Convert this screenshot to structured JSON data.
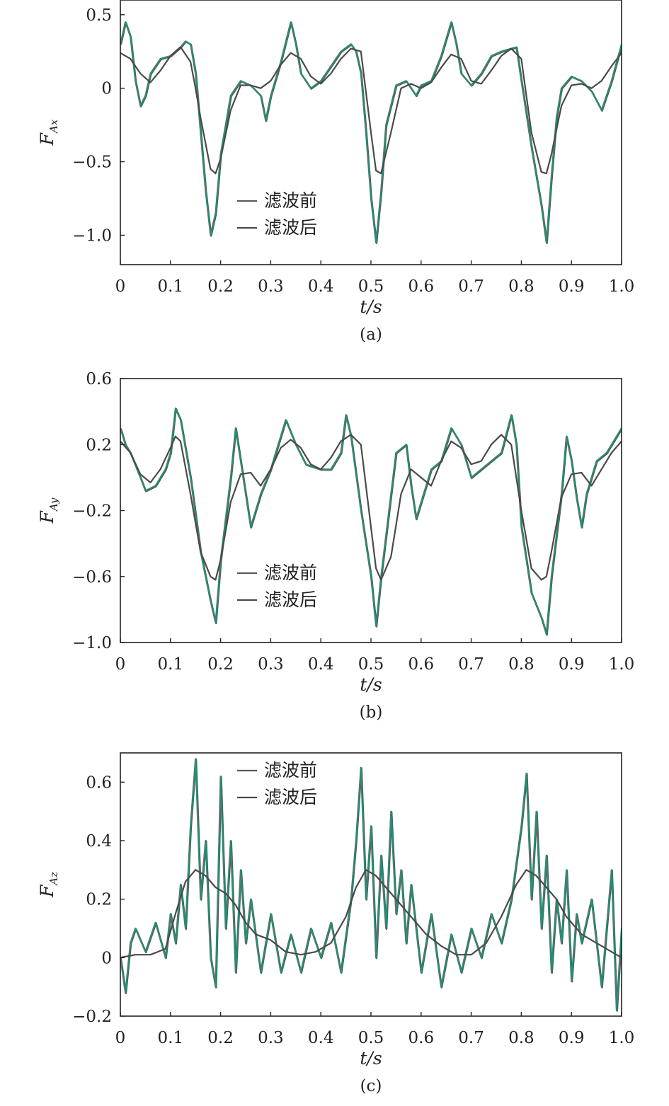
{
  "colors": {
    "raw": "#2e8a74",
    "raw_shadow": "#5a5a5a",
    "filtered": "#4a4a4a",
    "axis": "#222222"
  },
  "chart_data": [
    {
      "type": "line",
      "panel": "(a)",
      "xlabel": "t/s",
      "ylabel": "F_Ax",
      "ylabel_main": "F",
      "ylabel_sub": "Ax",
      "xlim": [
        0,
        1.0
      ],
      "ylim": [
        -1.2,
        0.6
      ],
      "x_ticks": [
        0,
        0.1,
        0.2,
        0.3,
        0.4,
        0.5,
        0.6,
        0.7,
        0.8,
        0.9,
        1.0
      ],
      "x_tick_labels": [
        "0",
        "0.1",
        "0.2",
        "0.3",
        "0.4",
        "0.5",
        "0.6",
        "0.7",
        "0.8",
        "0.9",
        "1.0"
      ],
      "y_ticks": [
        0.5,
        0,
        -0.5,
        -1.0
      ],
      "y_tick_labels": [
        "0.5",
        "0",
        "−0.5",
        "−1.0"
      ],
      "legend": {
        "placement": "center-bottom",
        "entries": [
          "滤波前",
          "滤波后"
        ]
      },
      "series": [
        {
          "name": "滤波前",
          "x": [
            0,
            0.01,
            0.02,
            0.03,
            0.04,
            0.05,
            0.06,
            0.08,
            0.1,
            0.12,
            0.13,
            0.14,
            0.15,
            0.16,
            0.17,
            0.18,
            0.19,
            0.2,
            0.22,
            0.24,
            0.26,
            0.28,
            0.29,
            0.3,
            0.32,
            0.34,
            0.35,
            0.36,
            0.38,
            0.4,
            0.42,
            0.44,
            0.46,
            0.47,
            0.48,
            0.49,
            0.5,
            0.51,
            0.52,
            0.53,
            0.55,
            0.57,
            0.59,
            0.6,
            0.62,
            0.64,
            0.66,
            0.67,
            0.68,
            0.7,
            0.72,
            0.74,
            0.76,
            0.79,
            0.8,
            0.82,
            0.84,
            0.85,
            0.86,
            0.87,
            0.88,
            0.9,
            0.92,
            0.94,
            0.96,
            0.98,
            1.0
          ],
          "y": [
            0.3,
            0.45,
            0.35,
            0.05,
            -0.12,
            -0.05,
            0.1,
            0.2,
            0.22,
            0.28,
            0.32,
            0.3,
            0.1,
            -0.3,
            -0.7,
            -1.0,
            -0.85,
            -0.45,
            -0.05,
            0.05,
            0.02,
            -0.05,
            -0.22,
            -0.05,
            0.18,
            0.45,
            0.3,
            0.1,
            0.0,
            0.05,
            0.15,
            0.25,
            0.3,
            0.25,
            0.1,
            -0.3,
            -0.75,
            -1.05,
            -0.7,
            -0.25,
            0.02,
            0.05,
            -0.05,
            0.02,
            0.05,
            0.22,
            0.45,
            0.3,
            0.1,
            0.02,
            0.1,
            0.22,
            0.25,
            0.28,
            0.05,
            -0.4,
            -0.8,
            -1.05,
            -0.6,
            -0.2,
            0.0,
            0.08,
            0.05,
            -0.02,
            -0.15,
            0.05,
            0.3
          ]
        },
        {
          "name": "滤波后",
          "x": [
            0,
            0.02,
            0.04,
            0.06,
            0.08,
            0.1,
            0.12,
            0.14,
            0.15,
            0.16,
            0.18,
            0.19,
            0.2,
            0.22,
            0.24,
            0.26,
            0.28,
            0.3,
            0.32,
            0.34,
            0.36,
            0.38,
            0.4,
            0.42,
            0.44,
            0.46,
            0.48,
            0.5,
            0.51,
            0.52,
            0.54,
            0.56,
            0.58,
            0.6,
            0.62,
            0.64,
            0.66,
            0.68,
            0.7,
            0.72,
            0.74,
            0.76,
            0.78,
            0.8,
            0.82,
            0.84,
            0.85,
            0.86,
            0.88,
            0.9,
            0.92,
            0.94,
            0.96,
            0.98,
            1.0
          ],
          "y": [
            0.24,
            0.2,
            0.1,
            0.04,
            0.12,
            0.22,
            0.28,
            0.18,
            0.0,
            -0.2,
            -0.55,
            -0.58,
            -0.48,
            -0.15,
            0.02,
            0.02,
            0.0,
            0.05,
            0.16,
            0.24,
            0.2,
            0.08,
            0.03,
            0.1,
            0.2,
            0.27,
            0.25,
            -0.3,
            -0.56,
            -0.58,
            -0.3,
            0.0,
            0.03,
            0.0,
            0.04,
            0.14,
            0.23,
            0.2,
            0.05,
            0.03,
            0.12,
            0.22,
            0.27,
            0.2,
            -0.3,
            -0.57,
            -0.58,
            -0.45,
            -0.12,
            0.02,
            0.03,
            0.0,
            0.05,
            0.15,
            0.24
          ]
        }
      ]
    },
    {
      "type": "line",
      "panel": "(b)",
      "xlabel": "t/s",
      "ylabel": "F_Ay",
      "ylabel_main": "F",
      "ylabel_sub": "Ay",
      "xlim": [
        0,
        1.0
      ],
      "ylim": [
        -1.0,
        0.6
      ],
      "x_ticks": [
        0,
        0.1,
        0.2,
        0.3,
        0.4,
        0.5,
        0.6,
        0.7,
        0.8,
        0.9,
        1.0
      ],
      "x_tick_labels": [
        "0",
        "0.1",
        "0.2",
        "0.3",
        "0.4",
        "0.5",
        "0.6",
        "0.7",
        "0.8",
        "0.9",
        "1.0"
      ],
      "y_ticks": [
        0.6,
        0.2,
        -0.2,
        -0.6,
        -1.0
      ],
      "y_tick_labels": [
        "0.6",
        "0.2",
        "−0.2",
        "−0.6",
        "−1.0"
      ],
      "legend": {
        "placement": "center-bottom",
        "entries": [
          "滤波前",
          "滤波后"
        ]
      },
      "series": [
        {
          "name": "滤波前",
          "x": [
            0,
            0.01,
            0.02,
            0.04,
            0.05,
            0.07,
            0.09,
            0.1,
            0.11,
            0.12,
            0.14,
            0.16,
            0.18,
            0.19,
            0.2,
            0.22,
            0.23,
            0.24,
            0.25,
            0.26,
            0.28,
            0.3,
            0.33,
            0.35,
            0.37,
            0.4,
            0.42,
            0.44,
            0.45,
            0.46,
            0.48,
            0.5,
            0.51,
            0.52,
            0.54,
            0.55,
            0.57,
            0.58,
            0.59,
            0.6,
            0.62,
            0.64,
            0.66,
            0.68,
            0.7,
            0.72,
            0.74,
            0.76,
            0.78,
            0.79,
            0.8,
            0.82,
            0.84,
            0.85,
            0.86,
            0.88,
            0.89,
            0.9,
            0.91,
            0.92,
            0.93,
            0.95,
            0.97,
            1.0
          ],
          "y": [
            0.3,
            0.2,
            0.15,
            0.0,
            -0.08,
            -0.05,
            0.05,
            0.15,
            0.42,
            0.35,
            0.0,
            -0.45,
            -0.75,
            -0.88,
            -0.5,
            0.0,
            0.3,
            0.1,
            -0.1,
            -0.3,
            -0.1,
            0.05,
            0.35,
            0.2,
            0.08,
            0.05,
            0.05,
            0.15,
            0.38,
            0.25,
            -0.2,
            -0.6,
            -0.9,
            -0.6,
            -0.1,
            0.15,
            0.2,
            -0.05,
            -0.25,
            -0.15,
            0.05,
            0.1,
            0.3,
            0.2,
            0.0,
            0.05,
            0.1,
            0.15,
            0.38,
            0.2,
            -0.3,
            -0.7,
            -0.85,
            -0.95,
            -0.6,
            -0.1,
            0.25,
            0.1,
            -0.12,
            -0.3,
            -0.1,
            0.1,
            0.15,
            0.3
          ]
        },
        {
          "name": "滤波后",
          "x": [
            0,
            0.02,
            0.04,
            0.06,
            0.08,
            0.1,
            0.11,
            0.12,
            0.14,
            0.16,
            0.18,
            0.19,
            0.2,
            0.22,
            0.24,
            0.26,
            0.28,
            0.3,
            0.32,
            0.34,
            0.36,
            0.38,
            0.4,
            0.42,
            0.44,
            0.46,
            0.48,
            0.5,
            0.51,
            0.52,
            0.54,
            0.56,
            0.58,
            0.6,
            0.62,
            0.64,
            0.66,
            0.68,
            0.7,
            0.72,
            0.74,
            0.76,
            0.78,
            0.8,
            0.82,
            0.84,
            0.85,
            0.86,
            0.88,
            0.9,
            0.92,
            0.94,
            0.96,
            0.98,
            1.0
          ],
          "y": [
            0.22,
            0.15,
            0.02,
            -0.03,
            0.05,
            0.18,
            0.25,
            0.22,
            -0.1,
            -0.45,
            -0.6,
            -0.62,
            -0.5,
            -0.15,
            0.02,
            0.03,
            -0.05,
            0.05,
            0.18,
            0.23,
            0.18,
            0.08,
            0.05,
            0.12,
            0.22,
            0.26,
            0.2,
            -0.3,
            -0.55,
            -0.62,
            -0.48,
            -0.1,
            0.05,
            0.0,
            -0.05,
            0.1,
            0.22,
            0.18,
            0.08,
            0.1,
            0.2,
            0.26,
            0.2,
            -0.2,
            -0.55,
            -0.62,
            -0.6,
            -0.45,
            -0.12,
            0.02,
            0.03,
            -0.05,
            0.05,
            0.15,
            0.22
          ]
        }
      ]
    },
    {
      "type": "line",
      "panel": "(c)",
      "xlabel": "t/s",
      "ylabel": "F_Az",
      "ylabel_main": "F",
      "ylabel_sub": "Az",
      "xlim": [
        0,
        1.0
      ],
      "ylim": [
        -0.2,
        0.7
      ],
      "x_ticks": [
        0,
        0.1,
        0.2,
        0.3,
        0.4,
        0.5,
        0.6,
        0.7,
        0.8,
        0.9,
        1.0
      ],
      "x_tick_labels": [
        "0",
        "0.1",
        "0.2",
        "0.3",
        "0.4",
        "0.5",
        "0.6",
        "0.7",
        "0.8",
        "0.9",
        "1.0"
      ],
      "y_ticks": [
        0.6,
        0.4,
        0.2,
        0,
        -0.2
      ],
      "y_tick_labels": [
        "0.6",
        "0.4",
        "0.2",
        "0",
        "−0.2"
      ],
      "legend": {
        "placement": "top-left",
        "entries": [
          "滤波前",
          "滤波后"
        ]
      },
      "series": [
        {
          "name": "滤波前",
          "x": [
            0,
            0.01,
            0.02,
            0.03,
            0.05,
            0.07,
            0.09,
            0.1,
            0.11,
            0.12,
            0.13,
            0.14,
            0.15,
            0.16,
            0.17,
            0.18,
            0.19,
            0.2,
            0.21,
            0.22,
            0.23,
            0.24,
            0.25,
            0.26,
            0.28,
            0.3,
            0.32,
            0.34,
            0.36,
            0.38,
            0.4,
            0.42,
            0.44,
            0.46,
            0.47,
            0.48,
            0.49,
            0.5,
            0.51,
            0.52,
            0.53,
            0.54,
            0.55,
            0.56,
            0.57,
            0.58,
            0.6,
            0.62,
            0.64,
            0.66,
            0.68,
            0.7,
            0.72,
            0.74,
            0.76,
            0.78,
            0.8,
            0.81,
            0.82,
            0.83,
            0.84,
            0.85,
            0.86,
            0.87,
            0.88,
            0.89,
            0.9,
            0.91,
            0.92,
            0.94,
            0.96,
            0.98,
            0.99,
            1.0
          ],
          "y": [
            0.0,
            -0.12,
            0.05,
            0.1,
            0.02,
            0.12,
            0.0,
            0.15,
            0.05,
            0.25,
            0.1,
            0.45,
            0.68,
            0.2,
            0.4,
            0.0,
            -0.1,
            0.62,
            0.1,
            0.4,
            -0.05,
            0.3,
            0.05,
            0.2,
            -0.05,
            0.15,
            -0.05,
            0.08,
            -0.05,
            0.1,
            0.0,
            0.12,
            -0.05,
            0.2,
            0.4,
            0.65,
            0.2,
            0.45,
            0.0,
            0.35,
            0.1,
            0.5,
            0.15,
            0.3,
            0.05,
            0.25,
            -0.05,
            0.15,
            -0.1,
            0.08,
            -0.05,
            0.1,
            0.0,
            0.15,
            0.05,
            0.2,
            0.45,
            0.63,
            0.2,
            0.5,
            0.1,
            0.35,
            -0.05,
            0.2,
            0.05,
            0.3,
            -0.08,
            0.15,
            0.05,
            0.2,
            -0.1,
            0.3,
            -0.18,
            0.1
          ]
        },
        {
          "name": "滤波后",
          "x": [
            0,
            0.03,
            0.06,
            0.09,
            0.11,
            0.13,
            0.15,
            0.17,
            0.19,
            0.21,
            0.23,
            0.25,
            0.27,
            0.3,
            0.33,
            0.36,
            0.39,
            0.42,
            0.45,
            0.47,
            0.49,
            0.51,
            0.53,
            0.55,
            0.58,
            0.61,
            0.64,
            0.67,
            0.7,
            0.73,
            0.76,
            0.79,
            0.81,
            0.83,
            0.85,
            0.87,
            0.89,
            0.92,
            0.95,
            0.98,
            1.0
          ],
          "y": [
            0.0,
            0.01,
            0.01,
            0.03,
            0.15,
            0.26,
            0.3,
            0.28,
            0.24,
            0.22,
            0.18,
            0.12,
            0.08,
            0.06,
            0.02,
            0.01,
            0.02,
            0.05,
            0.14,
            0.24,
            0.3,
            0.28,
            0.24,
            0.2,
            0.14,
            0.08,
            0.04,
            0.01,
            0.01,
            0.05,
            0.14,
            0.25,
            0.3,
            0.28,
            0.24,
            0.2,
            0.14,
            0.08,
            0.05,
            0.02,
            0.0
          ]
        }
      ]
    }
  ]
}
